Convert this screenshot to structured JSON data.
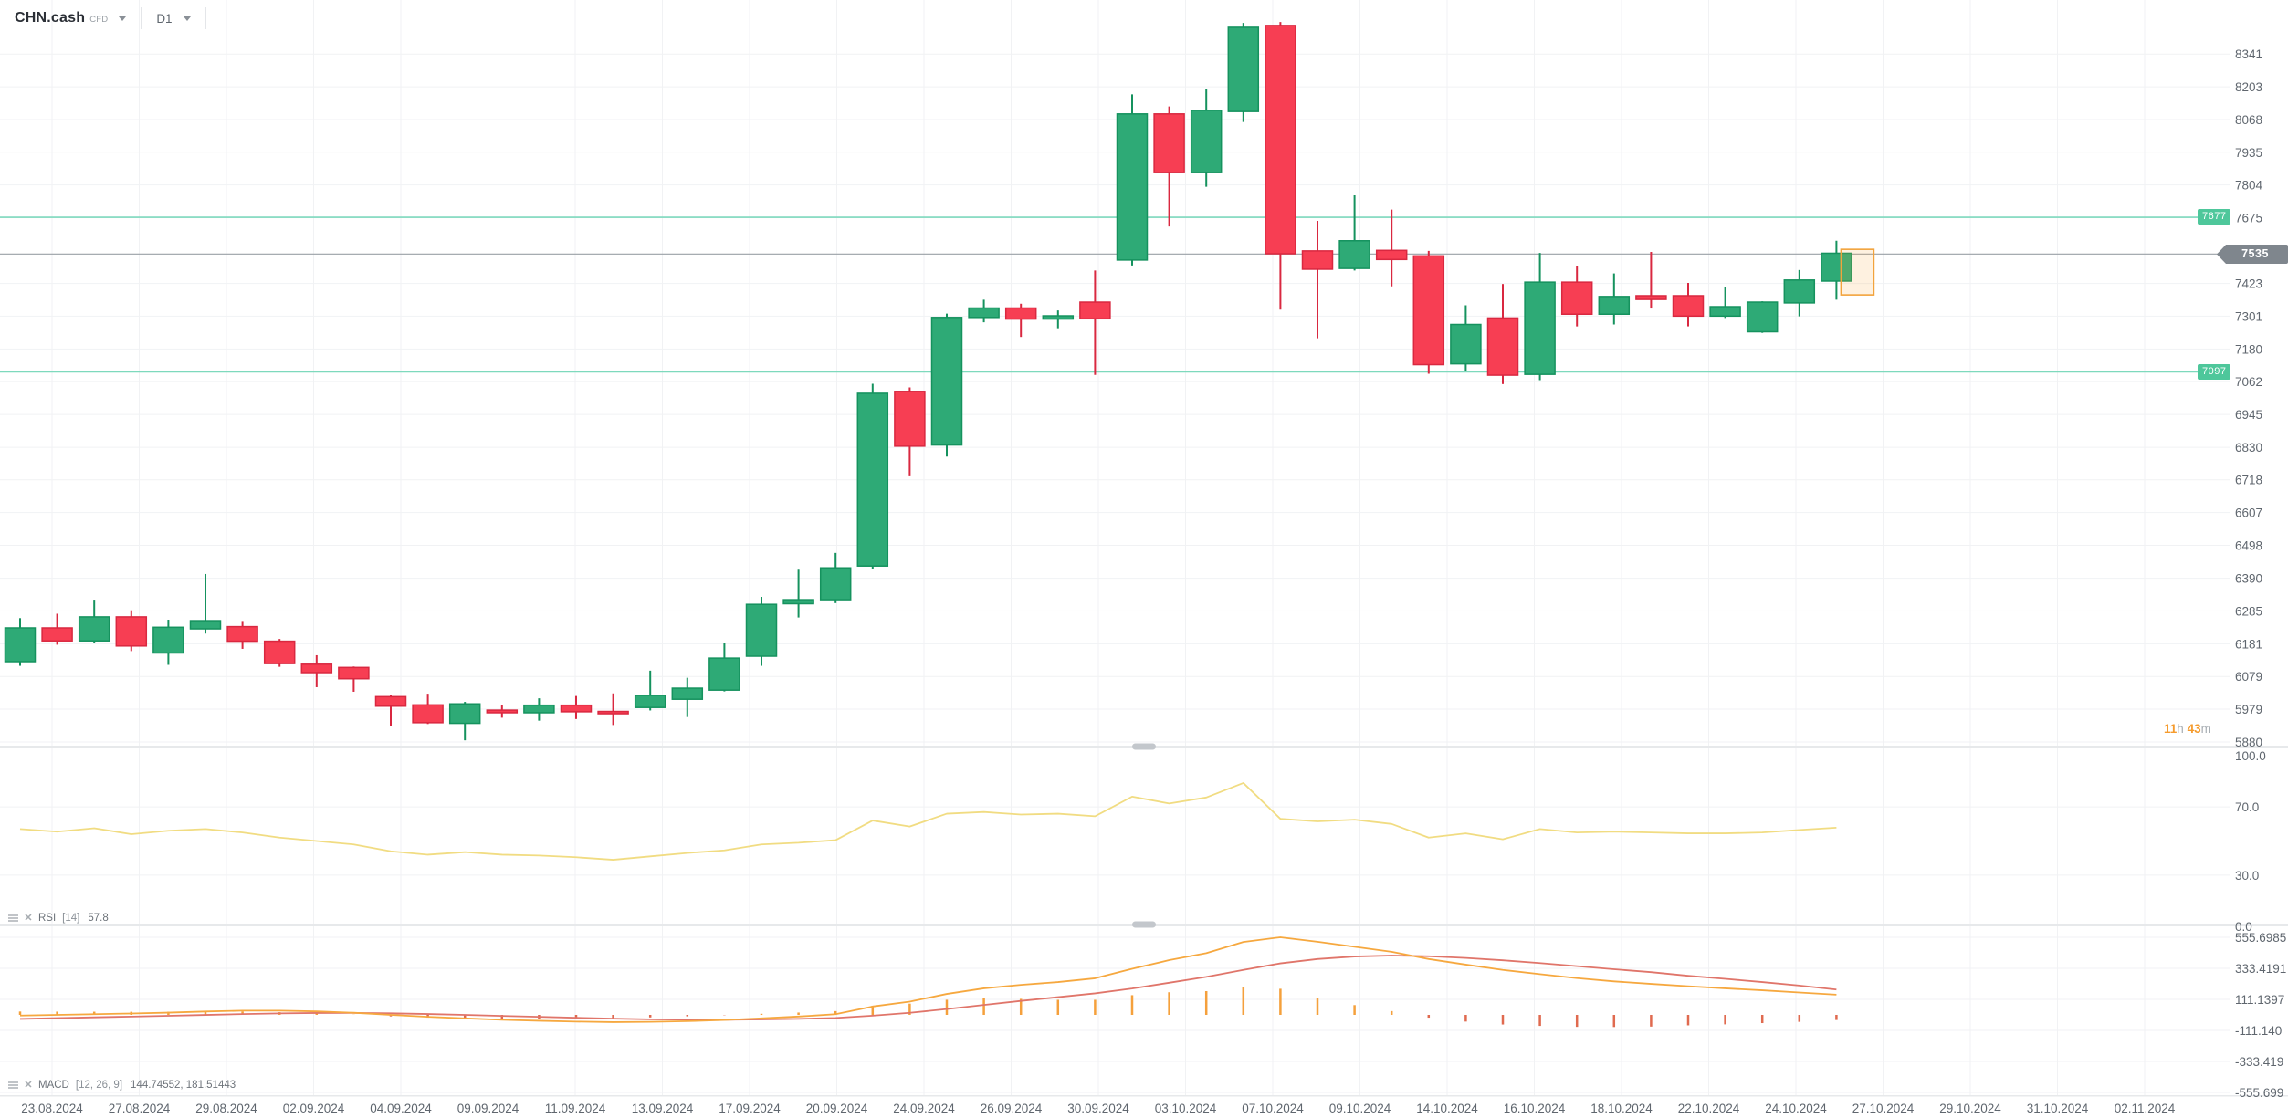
{
  "header": {
    "symbol": "CHN.cash",
    "instrument_type": "CFD",
    "timeframe": "D1"
  },
  "price_tags": {
    "upper": "7677",
    "lower": "7097",
    "current": "7535"
  },
  "countdown": {
    "hours": "11",
    "hours_unit": "h",
    "minutes": "43",
    "minutes_unit": "m"
  },
  "indicators": {
    "rsi": {
      "name": "RSI",
      "params": "[14]",
      "value": "57.8"
    },
    "macd": {
      "name": "MACD",
      "params": "[12, 26, 9]",
      "values": "144.74552,  181.51443"
    }
  },
  "colors": {
    "bull_fill": "#2eaa76",
    "bull_stroke": "#15925e",
    "bear_fill": "#f73e53",
    "bear_stroke": "#d92840",
    "level_line": "#7ed9bd",
    "level_tag": "#4ec79b",
    "current_line": "#9aa0a6",
    "current_tag": "#7f868d",
    "grid": "#f1f2f4",
    "axis_text": "#5f666e",
    "rsi_line": "#f1dc82",
    "macd_line": "#f6a83f",
    "signal_line": "#e0756a",
    "hist_pos": "#f5a03c",
    "hist_neg": "#e06a4f",
    "projection_fill": "rgba(246,166,60,0.16)",
    "projection_stroke": "#f2a33c",
    "separator": "#e7e9eb",
    "handle": "#c3c7cc"
  },
  "chart_data": [
    {
      "type": "candlestick",
      "title": "CHN.cash CFD D1",
      "y_scale": "log",
      "ylim": [
        5868,
        8573
      ],
      "y_axis_ticks": [
        8341,
        8203,
        8068,
        7935,
        7804,
        7675,
        7423,
        7301,
        7180,
        7062,
        6945,
        6830,
        6718,
        6607,
        6498,
        6390,
        6285,
        6181,
        6079,
        5979,
        5880
      ],
      "x_axis_dates": [
        "23.08.2024",
        "27.08.2024",
        "29.08.2024",
        "02.09.2024",
        "04.09.2024",
        "09.09.2024",
        "11.09.2024",
        "13.09.2024",
        "17.09.2024",
        "20.09.2024",
        "24.09.2024",
        "26.09.2024",
        "30.09.2024",
        "03.10.2024",
        "07.10.2024",
        "09.10.2024",
        "14.10.2024",
        "16.10.2024",
        "18.10.2024",
        "22.10.2024",
        "24.10.2024",
        "27.10.2024",
        "29.10.2024",
        "31.10.2024",
        "02.11.2024"
      ],
      "support_levels": [
        7677,
        7097
      ],
      "current_price": 7535,
      "projection_box": {
        "price_top": 7553,
        "price_bottom": 7380
      },
      "candles": [
        [
          6125,
          6262,
          6112,
          6231
        ],
        [
          6231,
          6276,
          6178,
          6190
        ],
        [
          6190,
          6321,
          6183,
          6266
        ],
        [
          6266,
          6287,
          6158,
          6174
        ],
        [
          6152,
          6257,
          6115,
          6233
        ],
        [
          6228,
          6404,
          6213,
          6254
        ],
        [
          6235,
          6253,
          6165,
          6189
        ],
        [
          6189,
          6196,
          6109,
          6119
        ],
        [
          6117,
          6145,
          6046,
          6091
        ],
        [
          6107,
          6110,
          6032,
          6072
        ],
        [
          6017,
          6023,
          5928,
          5988
        ],
        [
          5992,
          6026,
          5934,
          5938
        ],
        [
          5936,
          6001,
          5885,
          5995
        ],
        [
          5976,
          5992,
          5953,
          5968
        ],
        [
          5968,
          6012,
          5944,
          5991
        ],
        [
          5991,
          6019,
          5949,
          5971
        ],
        [
          5972,
          6027,
          5931,
          5966
        ],
        [
          5984,
          6097,
          5975,
          6021
        ],
        [
          6009,
          6075,
          5955,
          6043
        ],
        [
          6037,
          6183,
          6033,
          6136
        ],
        [
          6142,
          6330,
          6112,
          6306
        ],
        [
          6308,
          6418,
          6264,
          6321
        ],
        [
          6321,
          6473,
          6310,
          6424
        ],
        [
          6430,
          7054,
          6419,
          7020
        ],
        [
          7027,
          7041,
          6730,
          6834
        ],
        [
          6838,
          7310,
          6798,
          7296
        ],
        [
          7296,
          7362,
          7278,
          7331
        ],
        [
          7331,
          7347,
          7224,
          7290
        ],
        [
          7290,
          7322,
          7256,
          7302
        ],
        [
          7353,
          7472,
          7086,
          7291
        ],
        [
          7512,
          8172,
          7491,
          8091
        ],
        [
          8091,
          8122,
          7641,
          7853
        ],
        [
          7853,
          8194,
          7797,
          8106
        ],
        [
          8101,
          8474,
          8058,
          8455
        ],
        [
          8463,
          8478,
          7325,
          7536
        ],
        [
          7547,
          7663,
          7219,
          7477
        ],
        [
          7480,
          7763,
          7472,
          7586
        ],
        [
          7549,
          7707,
          7412,
          7514
        ],
        [
          7528,
          7547,
          7090,
          7123
        ],
        [
          7126,
          7341,
          7099,
          7270
        ],
        [
          7294,
          7421,
          7053,
          7085
        ],
        [
          7088,
          7539,
          7067,
          7428
        ],
        [
          7428,
          7488,
          7263,
          7308
        ],
        [
          7308,
          7461,
          7270,
          7374
        ],
        [
          7377,
          7543,
          7329,
          7363
        ],
        [
          7377,
          7425,
          7263,
          7301
        ],
        [
          7301,
          7411,
          7294,
          7336
        ],
        [
          7243,
          7356,
          7239,
          7353
        ],
        [
          7350,
          7474,
          7300,
          7436
        ],
        [
          7432,
          7586,
          7362,
          7538
        ]
      ]
    },
    {
      "type": "line",
      "name": "RSI",
      "period": 14,
      "last_value": 57.8,
      "ylim": [
        0,
        100
      ],
      "guides": [
        70,
        30
      ],
      "y_axis_ticks": [
        "100.0",
        "70.0",
        "30.0",
        "0.0"
      ],
      "values": [
        57,
        55.5,
        57.5,
        54,
        56,
        57,
        55,
        52,
        50,
        48,
        44,
        42,
        43.5,
        42,
        41.5,
        40.5,
        39,
        41,
        43,
        44.5,
        48,
        49,
        50.5,
        62,
        58.5,
        66,
        67,
        65.5,
        66,
        64.5,
        76,
        72,
        75.5,
        84,
        63,
        61.5,
        62.5,
        60,
        52,
        54.5,
        51,
        57,
        55,
        55.5,
        55,
        54.5,
        54.5,
        55,
        56.5,
        57.8
      ]
    },
    {
      "type": "macd",
      "name": "MACD",
      "params": [
        12,
        26,
        9
      ],
      "last_macd": 144.74552,
      "last_signal": 181.51443,
      "y_axis_ticks": [
        "555.6985",
        "333.4191",
        "111.1397",
        "-111.140",
        "-333.419",
        "-555.699"
      ],
      "macd": [
        -5,
        0,
        5,
        10,
        16,
        24,
        30,
        30,
        25,
        15,
        0,
        -14,
        -25,
        -35,
        -42,
        -48,
        -52,
        -50,
        -45,
        -37,
        -25,
        -12,
        5,
        60,
        95,
        150,
        190,
        215,
        235,
        262,
        330,
        392,
        442,
        522,
        556,
        524,
        488,
        452,
        400,
        360,
        322,
        292,
        263,
        240,
        222,
        205,
        190,
        176,
        160,
        144.74552
      ],
      "signal": [
        -29,
        -23.2,
        -17.6,
        -12.1,
        -6.4,
        -0.3,
        5.7,
        10.6,
        13.5,
        13.8,
        11,
        6,
        -0.2,
        -7.2,
        -14.1,
        -20.9,
        -27.1,
        -31.7,
        -34.4,
        -34.9,
        -32.9,
        -28.7,
        -22,
        -5.6,
        14.5,
        41.6,
        71.3,
        100,
        127,
        154,
        189,
        230,
        272,
        322,
        369,
        400,
        418,
        425,
        420,
        408,
        391,
        371,
        349,
        327,
        306,
        280,
        258,
        235,
        210,
        181.51443
      ]
    }
  ]
}
